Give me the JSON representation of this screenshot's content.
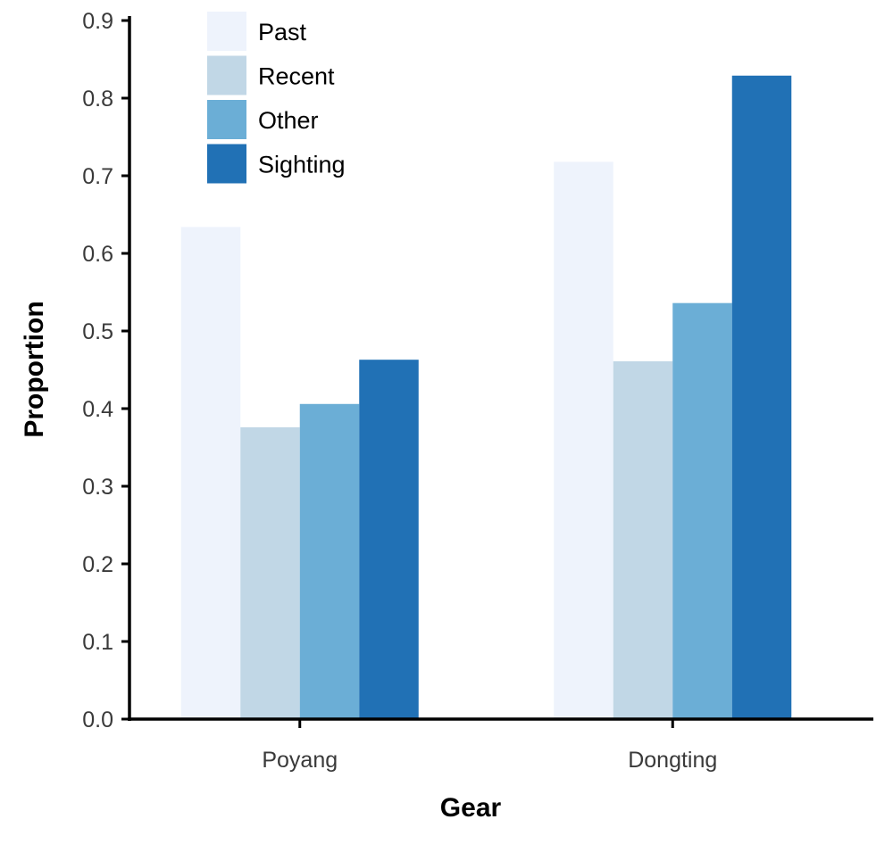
{
  "chart_data": {
    "type": "bar",
    "title": "",
    "xlabel": "Gear",
    "ylabel": "Proportion",
    "categories": [
      "Poyang",
      "Dongting"
    ],
    "series": [
      {
        "name": "Past",
        "color": "#eef3fc",
        "values": [
          0.634,
          0.718
        ]
      },
      {
        "name": "Recent",
        "color": "#c1d7e6",
        "values": [
          0.376,
          0.461
        ]
      },
      {
        "name": "Other",
        "color": "#6baed6",
        "values": [
          0.406,
          0.536
        ]
      },
      {
        "name": "Sighting",
        "color": "#2171b5",
        "values": [
          0.463,
          0.829
        ]
      }
    ],
    "ylim": [
      0,
      0.9
    ],
    "yticks": [
      "0.0",
      "0.1",
      "0.2",
      "0.3",
      "0.4",
      "0.5",
      "0.6",
      "0.7",
      "0.8",
      "0.9"
    ],
    "grid": false,
    "legend_position": "top-left"
  }
}
